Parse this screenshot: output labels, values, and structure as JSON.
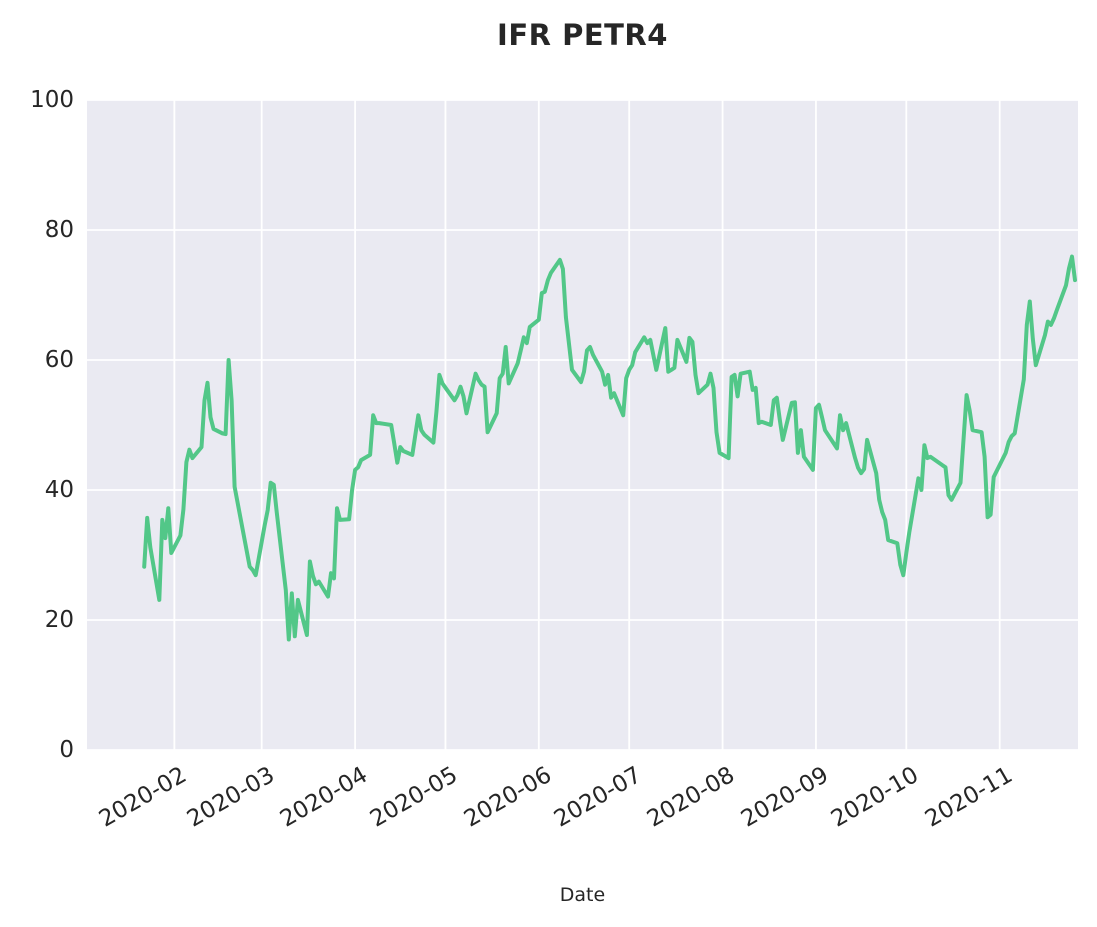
{
  "figure": {
    "title": "IFR PETR4",
    "x_axis_label": "Date"
  },
  "chart_data": {
    "type": "line",
    "title": "IFR PETR4",
    "xlabel": "Date",
    "ylabel": "",
    "ylim": [
      0,
      100
    ],
    "y_ticks": [
      0,
      20,
      40,
      60,
      80,
      100
    ],
    "x_ticks": [
      {
        "date": "2020-02-01",
        "label": "2020-02"
      },
      {
        "date": "2020-03-01",
        "label": "2020-03"
      },
      {
        "date": "2020-04-01",
        "label": "2020-04"
      },
      {
        "date": "2020-05-01",
        "label": "2020-05"
      },
      {
        "date": "2020-06-01",
        "label": "2020-06"
      },
      {
        "date": "2020-07-01",
        "label": "2020-07"
      },
      {
        "date": "2020-08-01",
        "label": "2020-08"
      },
      {
        "date": "2020-09-01",
        "label": "2020-09"
      },
      {
        "date": "2020-10-01",
        "label": "2020-10"
      },
      {
        "date": "2020-11-01",
        "label": "2020-11"
      }
    ],
    "x_range": [
      "2020-01-03",
      "2020-11-27"
    ],
    "grid": true,
    "legend": "none",
    "styles": {
      "line_color": "#52c788",
      "plot_background": "#eaeaf2",
      "grid_color": "#ffffff",
      "text_color": "#262626",
      "figure_background": "#ffffff"
    },
    "series": [
      {
        "name": "IFR PETR4",
        "points": [
          [
            "2020-01-22",
            28.2
          ],
          [
            "2020-01-23",
            35.7
          ],
          [
            "2020-01-24",
            31.2
          ],
          [
            "2020-01-27",
            23.1
          ],
          [
            "2020-01-28",
            35.4
          ],
          [
            "2020-01-29",
            32.6
          ],
          [
            "2020-01-30",
            37.2
          ],
          [
            "2020-01-31",
            30.3
          ],
          [
            "2020-02-03",
            33.0
          ],
          [
            "2020-02-04",
            37.0
          ],
          [
            "2020-02-05",
            44.3
          ],
          [
            "2020-02-06",
            46.2
          ],
          [
            "2020-02-07",
            44.9
          ],
          [
            "2020-02-10",
            46.6
          ],
          [
            "2020-02-11",
            53.8
          ],
          [
            "2020-02-12",
            56.5
          ],
          [
            "2020-02-13",
            51.2
          ],
          [
            "2020-02-14",
            49.4
          ],
          [
            "2020-02-17",
            48.7
          ],
          [
            "2020-02-18",
            48.6
          ],
          [
            "2020-02-19",
            60.0
          ],
          [
            "2020-02-20",
            53.8
          ],
          [
            "2020-02-21",
            40.5
          ],
          [
            "2020-02-26",
            28.2
          ],
          [
            "2020-02-27",
            27.7
          ],
          [
            "2020-02-28",
            26.9
          ],
          [
            "2020-03-02",
            34.6
          ],
          [
            "2020-03-03",
            36.9
          ],
          [
            "2020-03-04",
            41.1
          ],
          [
            "2020-03-05",
            40.8
          ],
          [
            "2020-03-06",
            36.5
          ],
          [
            "2020-03-09",
            24.6
          ],
          [
            "2020-03-10",
            17.0
          ],
          [
            "2020-03-11",
            24.1
          ],
          [
            "2020-03-12",
            17.5
          ],
          [
            "2020-03-13",
            23.1
          ],
          [
            "2020-03-16",
            17.7
          ],
          [
            "2020-03-17",
            29.0
          ],
          [
            "2020-03-18",
            26.8
          ],
          [
            "2020-03-19",
            25.5
          ],
          [
            "2020-03-20",
            25.9
          ],
          [
            "2020-03-23",
            23.6
          ],
          [
            "2020-03-24",
            27.2
          ],
          [
            "2020-03-25",
            26.4
          ],
          [
            "2020-03-26",
            37.2
          ],
          [
            "2020-03-27",
            35.4
          ],
          [
            "2020-03-30",
            35.5
          ],
          [
            "2020-03-31",
            40.0
          ],
          [
            "2020-04-01",
            43.1
          ],
          [
            "2020-04-02",
            43.5
          ],
          [
            "2020-04-03",
            44.6
          ],
          [
            "2020-04-06",
            45.4
          ],
          [
            "2020-04-07",
            51.5
          ],
          [
            "2020-04-08",
            50.3
          ],
          [
            "2020-04-09",
            50.3
          ],
          [
            "2020-04-13",
            50.0
          ],
          [
            "2020-04-14",
            47.2
          ],
          [
            "2020-04-15",
            44.2
          ],
          [
            "2020-04-16",
            46.6
          ],
          [
            "2020-04-17",
            46.0
          ],
          [
            "2020-04-20",
            45.4
          ],
          [
            "2020-04-22",
            51.5
          ],
          [
            "2020-04-23",
            49.2
          ],
          [
            "2020-04-24",
            48.5
          ],
          [
            "2020-04-27",
            47.3
          ],
          [
            "2020-04-28",
            52.0
          ],
          [
            "2020-04-29",
            57.7
          ],
          [
            "2020-04-30",
            56.4
          ],
          [
            "2020-05-04",
            53.8
          ],
          [
            "2020-05-05",
            54.6
          ],
          [
            "2020-05-06",
            55.9
          ],
          [
            "2020-05-07",
            54.4
          ],
          [
            "2020-05-08",
            51.8
          ],
          [
            "2020-05-11",
            57.9
          ],
          [
            "2020-05-12",
            56.9
          ],
          [
            "2020-05-13",
            56.2
          ],
          [
            "2020-05-14",
            55.9
          ],
          [
            "2020-05-15",
            48.9
          ],
          [
            "2020-05-18",
            51.8
          ],
          [
            "2020-05-19",
            57.2
          ],
          [
            "2020-05-20",
            57.9
          ],
          [
            "2020-05-21",
            62.0
          ],
          [
            "2020-05-22",
            56.4
          ],
          [
            "2020-05-25",
            59.5
          ],
          [
            "2020-05-26",
            61.5
          ],
          [
            "2020-05-27",
            63.5
          ],
          [
            "2020-05-28",
            62.6
          ],
          [
            "2020-05-29",
            65.1
          ],
          [
            "2020-06-01",
            66.2
          ],
          [
            "2020-06-02",
            70.3
          ],
          [
            "2020-06-03",
            70.5
          ],
          [
            "2020-06-04",
            72.3
          ],
          [
            "2020-06-05",
            73.4
          ],
          [
            "2020-06-08",
            75.4
          ],
          [
            "2020-06-09",
            74.0
          ],
          [
            "2020-06-10",
            66.6
          ],
          [
            "2020-06-12",
            58.5
          ],
          [
            "2020-06-15",
            56.6
          ],
          [
            "2020-06-16",
            58.2
          ],
          [
            "2020-06-17",
            61.5
          ],
          [
            "2020-06-18",
            62.0
          ],
          [
            "2020-06-19",
            60.8
          ],
          [
            "2020-06-22",
            58.2
          ],
          [
            "2020-06-23",
            56.2
          ],
          [
            "2020-06-24",
            57.7
          ],
          [
            "2020-06-25",
            54.2
          ],
          [
            "2020-06-26",
            54.9
          ],
          [
            "2020-06-29",
            51.5
          ],
          [
            "2020-06-30",
            57.2
          ],
          [
            "2020-07-01",
            58.5
          ],
          [
            "2020-07-02",
            59.2
          ],
          [
            "2020-07-03",
            61.2
          ],
          [
            "2020-07-06",
            63.5
          ],
          [
            "2020-07-07",
            62.6
          ],
          [
            "2020-07-08",
            63.1
          ],
          [
            "2020-07-10",
            58.5
          ],
          [
            "2020-07-13",
            64.9
          ],
          [
            "2020-07-14",
            58.2
          ],
          [
            "2020-07-15",
            58.5
          ],
          [
            "2020-07-16",
            58.8
          ],
          [
            "2020-07-17",
            63.1
          ],
          [
            "2020-07-20",
            59.7
          ],
          [
            "2020-07-21",
            63.4
          ],
          [
            "2020-07-22",
            62.8
          ],
          [
            "2020-07-23",
            57.7
          ],
          [
            "2020-07-24",
            54.9
          ],
          [
            "2020-07-27",
            56.2
          ],
          [
            "2020-07-28",
            57.9
          ],
          [
            "2020-07-29",
            55.7
          ],
          [
            "2020-07-30",
            48.9
          ],
          [
            "2020-07-31",
            45.7
          ],
          [
            "2020-08-03",
            44.9
          ],
          [
            "2020-08-04",
            57.4
          ],
          [
            "2020-08-05",
            57.7
          ],
          [
            "2020-08-06",
            54.4
          ],
          [
            "2020-08-07",
            57.9
          ],
          [
            "2020-08-10",
            58.2
          ],
          [
            "2020-08-11",
            55.4
          ],
          [
            "2020-08-12",
            55.7
          ],
          [
            "2020-08-13",
            50.3
          ],
          [
            "2020-08-14",
            50.5
          ],
          [
            "2020-08-17",
            50.0
          ],
          [
            "2020-08-18",
            53.8
          ],
          [
            "2020-08-19",
            54.2
          ],
          [
            "2020-08-20",
            50.8
          ],
          [
            "2020-08-21",
            47.7
          ],
          [
            "2020-08-24",
            53.4
          ],
          [
            "2020-08-25",
            53.5
          ],
          [
            "2020-08-26",
            45.7
          ],
          [
            "2020-08-27",
            49.2
          ],
          [
            "2020-08-28",
            45.1
          ],
          [
            "2020-08-31",
            43.1
          ],
          [
            "2020-09-01",
            52.6
          ],
          [
            "2020-09-02",
            53.1
          ],
          [
            "2020-09-03",
            51.2
          ],
          [
            "2020-09-04",
            49.2
          ],
          [
            "2020-09-08",
            46.4
          ],
          [
            "2020-09-09",
            51.5
          ],
          [
            "2020-09-10",
            49.2
          ],
          [
            "2020-09-11",
            50.3
          ],
          [
            "2020-09-14",
            44.9
          ],
          [
            "2020-09-15",
            43.4
          ],
          [
            "2020-09-16",
            42.6
          ],
          [
            "2020-09-17",
            43.2
          ],
          [
            "2020-09-18",
            47.7
          ],
          [
            "2020-09-21",
            42.6
          ],
          [
            "2020-09-22",
            38.5
          ],
          [
            "2020-09-23",
            36.6
          ],
          [
            "2020-09-24",
            35.4
          ],
          [
            "2020-09-25",
            32.3
          ],
          [
            "2020-09-28",
            31.8
          ],
          [
            "2020-09-29",
            28.5
          ],
          [
            "2020-09-30",
            26.9
          ],
          [
            "2020-10-01",
            30.3
          ],
          [
            "2020-10-02",
            33.5
          ],
          [
            "2020-10-05",
            41.8
          ],
          [
            "2020-10-06",
            40.0
          ],
          [
            "2020-10-07",
            46.9
          ],
          [
            "2020-10-08",
            44.9
          ],
          [
            "2020-10-09",
            45.1
          ],
          [
            "2020-10-13",
            43.8
          ],
          [
            "2020-10-14",
            43.5
          ],
          [
            "2020-10-15",
            39.2
          ],
          [
            "2020-10-16",
            38.5
          ],
          [
            "2020-10-19",
            41.1
          ],
          [
            "2020-10-20",
            47.7
          ],
          [
            "2020-10-21",
            54.6
          ],
          [
            "2020-10-22",
            52.3
          ],
          [
            "2020-10-23",
            49.2
          ],
          [
            "2020-10-26",
            48.9
          ],
          [
            "2020-10-27",
            45.1
          ],
          [
            "2020-10-28",
            35.8
          ],
          [
            "2020-10-29",
            36.2
          ],
          [
            "2020-10-30",
            42.0
          ],
          [
            "2020-11-03",
            45.7
          ],
          [
            "2020-11-04",
            47.4
          ],
          [
            "2020-11-05",
            48.3
          ],
          [
            "2020-11-06",
            48.7
          ],
          [
            "2020-11-09",
            57.0
          ],
          [
            "2020-11-10",
            65.4
          ],
          [
            "2020-11-11",
            69.0
          ],
          [
            "2020-11-12",
            63.3
          ],
          [
            "2020-11-13",
            59.2
          ],
          [
            "2020-11-16",
            63.8
          ],
          [
            "2020-11-17",
            65.9
          ],
          [
            "2020-11-18",
            65.4
          ],
          [
            "2020-11-19",
            66.4
          ],
          [
            "2020-11-20",
            67.7
          ],
          [
            "2020-11-23",
            71.5
          ],
          [
            "2020-11-24",
            74.1
          ],
          [
            "2020-11-25",
            75.9
          ],
          [
            "2020-11-26",
            72.3
          ]
        ]
      }
    ]
  }
}
